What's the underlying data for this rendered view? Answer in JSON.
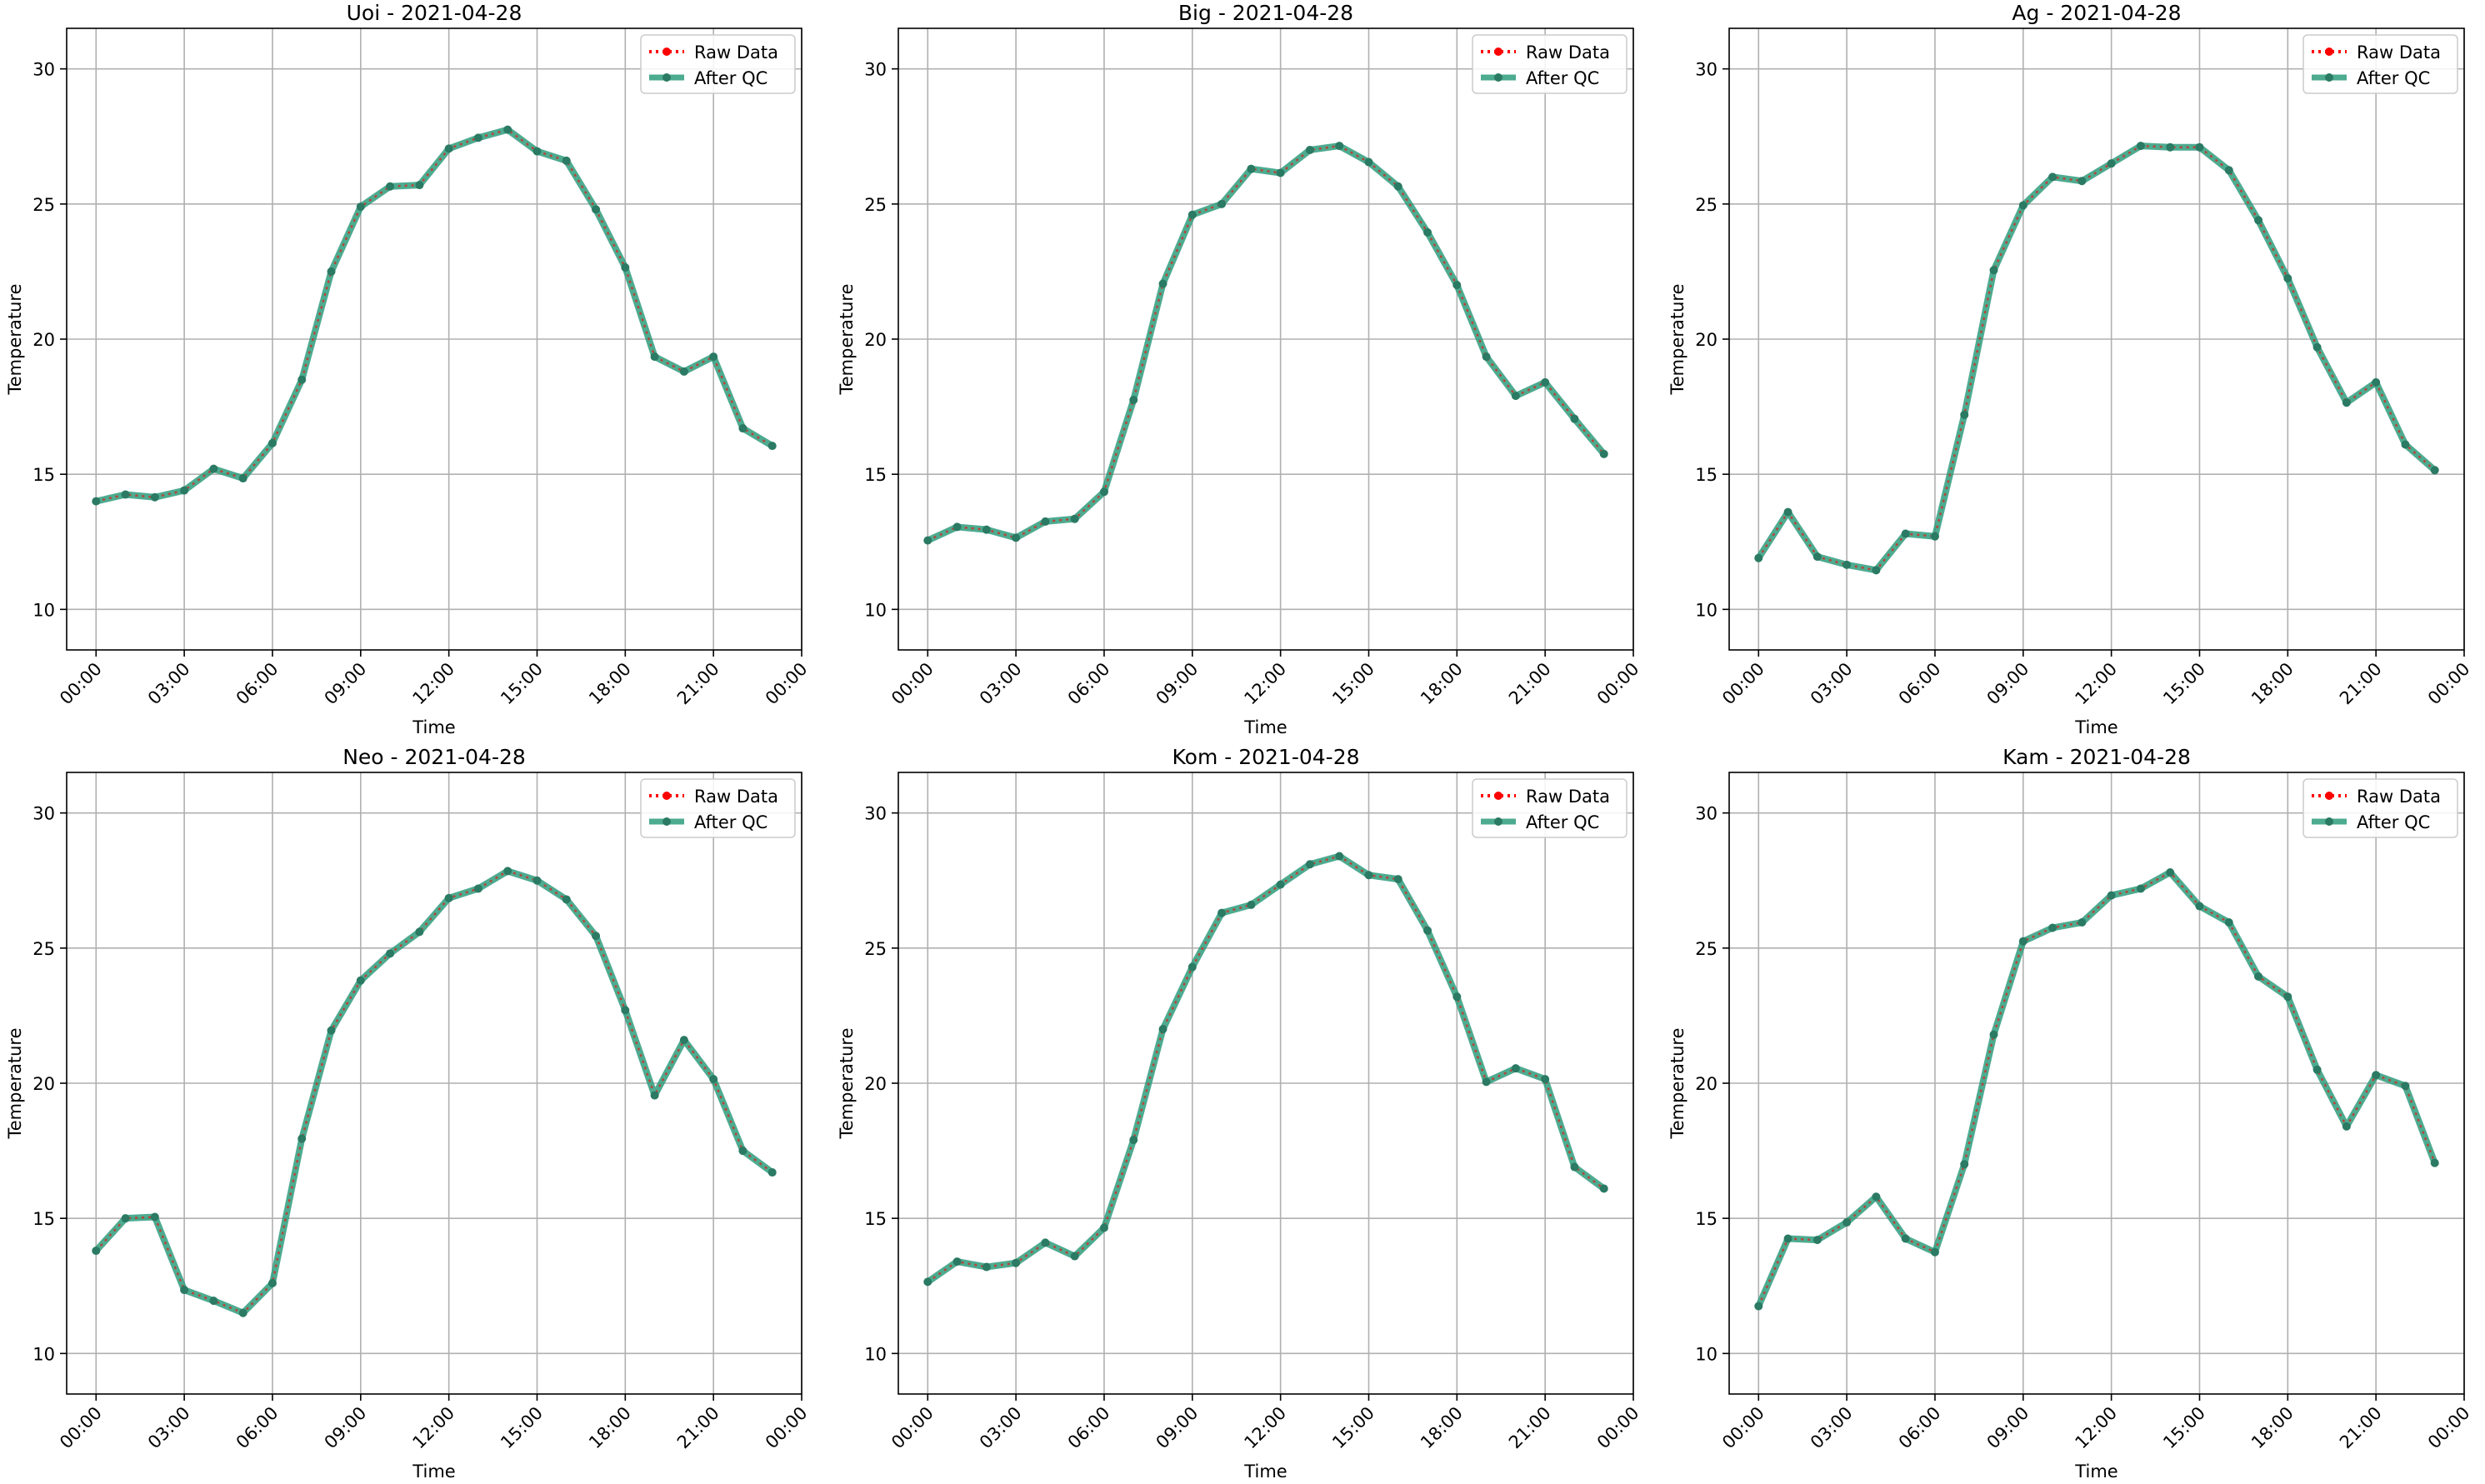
{
  "legend_labels": {
    "raw": "Raw Data",
    "qc": "After QC"
  },
  "colors": {
    "raw": "#ff0000",
    "qc": "#2e9c7c",
    "grid": "#b0b0b0",
    "marker": "#2b7a63"
  },
  "chart_data": [
    {
      "type": "line",
      "title": "Uoi - 2021-04-28",
      "xlabel": "Time",
      "ylabel": "Temperature",
      "xlim": [
        -1,
        24
      ],
      "ylim": [
        8.5,
        31.5
      ],
      "yticks": [
        10,
        15,
        20,
        25,
        30
      ],
      "xticks": [
        "00:00",
        "03:00",
        "06:00",
        "09:00",
        "12:00",
        "15:00",
        "18:00",
        "21:00",
        "00:00"
      ],
      "grid": true,
      "legend": "top-right",
      "x_hours": [
        0,
        1,
        2,
        3,
        4,
        5,
        6,
        7,
        8,
        9,
        10,
        11,
        12,
        13,
        14,
        15,
        16,
        17,
        18,
        19,
        20,
        21,
        22,
        23
      ],
      "series": [
        {
          "name": "Raw Data",
          "values": [
            14.0,
            14.25,
            14.15,
            14.4,
            15.2,
            14.85,
            16.15,
            18.5,
            22.5,
            24.9,
            25.65,
            25.7,
            27.05,
            27.45,
            27.75,
            26.95,
            26.6,
            24.8,
            22.65,
            19.35,
            18.8,
            19.35,
            16.7,
            16.05
          ]
        },
        {
          "name": "After QC",
          "values": [
            14.0,
            14.25,
            14.15,
            14.4,
            15.2,
            14.85,
            16.15,
            18.5,
            22.5,
            24.9,
            25.65,
            25.7,
            27.05,
            27.45,
            27.75,
            26.95,
            26.6,
            24.8,
            22.65,
            19.35,
            18.8,
            19.35,
            16.7,
            16.05
          ]
        }
      ]
    },
    {
      "type": "line",
      "title": "Big - 2021-04-28",
      "xlabel": "Time",
      "ylabel": "Temperature",
      "xlim": [
        -1,
        24
      ],
      "ylim": [
        8.5,
        31.5
      ],
      "yticks": [
        10,
        15,
        20,
        25,
        30
      ],
      "xticks": [
        "00:00",
        "03:00",
        "06:00",
        "09:00",
        "12:00",
        "15:00",
        "18:00",
        "21:00",
        "00:00"
      ],
      "grid": true,
      "legend": "top-right",
      "x_hours": [
        0,
        1,
        2,
        3,
        4,
        5,
        6,
        7,
        8,
        9,
        10,
        11,
        12,
        13,
        14,
        15,
        16,
        17,
        18,
        19,
        20,
        21,
        22,
        23
      ],
      "series": [
        {
          "name": "Raw Data",
          "values": [
            12.55,
            13.05,
            12.95,
            12.65,
            13.25,
            13.35,
            14.35,
            17.75,
            22.05,
            24.6,
            25.0,
            26.3,
            26.15,
            27.0,
            27.15,
            26.55,
            25.65,
            23.95,
            22.0,
            19.35,
            17.9,
            18.4,
            17.05,
            15.75
          ]
        },
        {
          "name": "After QC",
          "values": [
            12.55,
            13.05,
            12.95,
            12.65,
            13.25,
            13.35,
            14.35,
            17.75,
            22.05,
            24.6,
            25.0,
            26.3,
            26.15,
            27.0,
            27.15,
            26.55,
            25.65,
            23.95,
            22.0,
            19.35,
            17.9,
            18.4,
            17.05,
            15.75
          ]
        }
      ]
    },
    {
      "type": "line",
      "title": "Ag - 2021-04-28",
      "xlabel": "Time",
      "ylabel": "Temperature",
      "xlim": [
        -1,
        24
      ],
      "ylim": [
        8.5,
        31.5
      ],
      "yticks": [
        10,
        15,
        20,
        25,
        30
      ],
      "xticks": [
        "00:00",
        "03:00",
        "06:00",
        "09:00",
        "12:00",
        "15:00",
        "18:00",
        "21:00",
        "00:00"
      ],
      "grid": true,
      "legend": "top-right",
      "x_hours": [
        0,
        1,
        2,
        3,
        4,
        5,
        6,
        7,
        8,
        9,
        10,
        11,
        12,
        13,
        14,
        15,
        16,
        17,
        18,
        19,
        20,
        21,
        22,
        23
      ],
      "series": [
        {
          "name": "Raw Data",
          "values": [
            11.9,
            13.6,
            11.95,
            11.65,
            11.45,
            12.8,
            12.7,
            17.2,
            22.55,
            24.95,
            26.0,
            25.85,
            26.5,
            27.15,
            27.1,
            27.1,
            26.25,
            24.4,
            22.25,
            19.7,
            17.65,
            18.4,
            16.1,
            15.15
          ]
        },
        {
          "name": "After QC",
          "values": [
            11.9,
            13.6,
            11.95,
            11.65,
            11.45,
            12.8,
            12.7,
            17.2,
            22.55,
            24.95,
            26.0,
            25.85,
            26.5,
            27.15,
            27.1,
            27.1,
            26.25,
            24.4,
            22.25,
            19.7,
            17.65,
            18.4,
            16.1,
            15.15
          ]
        }
      ]
    },
    {
      "type": "line",
      "title": "Neo - 2021-04-28",
      "xlabel": "Time",
      "ylabel": "Temperature",
      "xlim": [
        -1,
        24
      ],
      "ylim": [
        8.5,
        31.5
      ],
      "yticks": [
        10,
        15,
        20,
        25,
        30
      ],
      "xticks": [
        "00:00",
        "03:00",
        "06:00",
        "09:00",
        "12:00",
        "15:00",
        "18:00",
        "21:00",
        "00:00"
      ],
      "grid": true,
      "legend": "top-right",
      "x_hours": [
        0,
        1,
        2,
        3,
        4,
        5,
        6,
        7,
        8,
        9,
        10,
        11,
        12,
        13,
        14,
        15,
        16,
        17,
        18,
        19,
        20,
        21,
        22,
        23
      ],
      "series": [
        {
          "name": "Raw Data",
          "values": [
            13.8,
            15.0,
            15.05,
            12.35,
            11.95,
            11.5,
            12.6,
            17.95,
            21.95,
            23.8,
            24.8,
            25.6,
            26.85,
            27.2,
            27.85,
            27.5,
            26.8,
            25.45,
            22.7,
            19.55,
            21.6,
            20.15,
            17.5,
            16.7
          ]
        },
        {
          "name": "After QC",
          "values": [
            13.8,
            15.0,
            15.05,
            12.35,
            11.95,
            11.5,
            12.6,
            17.95,
            21.95,
            23.8,
            24.8,
            25.6,
            26.85,
            27.2,
            27.85,
            27.5,
            26.8,
            25.45,
            22.7,
            19.55,
            21.6,
            20.15,
            17.5,
            16.7
          ]
        }
      ]
    },
    {
      "type": "line",
      "title": "Kom - 2021-04-28",
      "xlabel": "Time",
      "ylabel": "Temperature",
      "xlim": [
        -1,
        24
      ],
      "ylim": [
        8.5,
        31.5
      ],
      "yticks": [
        10,
        15,
        20,
        25,
        30
      ],
      "xticks": [
        "00:00",
        "03:00",
        "06:00",
        "09:00",
        "12:00",
        "15:00",
        "18:00",
        "21:00",
        "00:00"
      ],
      "grid": true,
      "legend": "top-right",
      "x_hours": [
        0,
        1,
        2,
        3,
        4,
        5,
        6,
        7,
        8,
        9,
        10,
        11,
        12,
        13,
        14,
        15,
        16,
        17,
        18,
        19,
        20,
        21,
        22,
        23
      ],
      "series": [
        {
          "name": "Raw Data",
          "values": [
            12.65,
            13.4,
            13.2,
            13.35,
            14.1,
            13.6,
            14.65,
            17.9,
            22.0,
            24.3,
            26.3,
            26.6,
            27.35,
            28.1,
            28.4,
            27.7,
            27.55,
            25.65,
            23.2,
            20.05,
            20.55,
            20.15,
            16.9,
            16.1
          ]
        },
        {
          "name": "After QC",
          "values": [
            12.65,
            13.4,
            13.2,
            13.35,
            14.1,
            13.6,
            14.65,
            17.9,
            22.0,
            24.3,
            26.3,
            26.6,
            27.35,
            28.1,
            28.4,
            27.7,
            27.55,
            25.65,
            23.2,
            20.05,
            20.55,
            20.15,
            16.9,
            16.1
          ]
        }
      ]
    },
    {
      "type": "line",
      "title": "Kam - 2021-04-28",
      "xlabel": "Time",
      "ylabel": "Temperature",
      "xlim": [
        -1,
        24
      ],
      "ylim": [
        8.5,
        31.5
      ],
      "yticks": [
        10,
        15,
        20,
        25,
        30
      ],
      "xticks": [
        "00:00",
        "03:00",
        "06:00",
        "09:00",
        "12:00",
        "15:00",
        "18:00",
        "21:00",
        "00:00"
      ],
      "grid": true,
      "legend": "top-right",
      "x_hours": [
        0,
        1,
        2,
        3,
        4,
        5,
        6,
        7,
        8,
        9,
        10,
        11,
        12,
        13,
        14,
        15,
        16,
        17,
        18,
        19,
        20,
        21,
        22,
        23
      ],
      "series": [
        {
          "name": "Raw Data",
          "values": [
            11.75,
            14.25,
            14.2,
            14.85,
            15.8,
            14.25,
            13.75,
            17.0,
            21.8,
            25.25,
            25.75,
            25.95,
            26.95,
            27.2,
            27.8,
            26.55,
            25.95,
            23.95,
            23.2,
            20.5,
            18.4,
            20.3,
            19.9,
            17.05
          ]
        },
        {
          "name": "After QC",
          "values": [
            11.75,
            14.25,
            14.2,
            14.85,
            15.8,
            14.25,
            13.75,
            17.0,
            21.8,
            25.25,
            25.75,
            25.95,
            26.95,
            27.2,
            27.8,
            26.55,
            25.95,
            23.95,
            23.2,
            20.5,
            18.4,
            20.3,
            19.9,
            17.05
          ]
        }
      ]
    }
  ]
}
